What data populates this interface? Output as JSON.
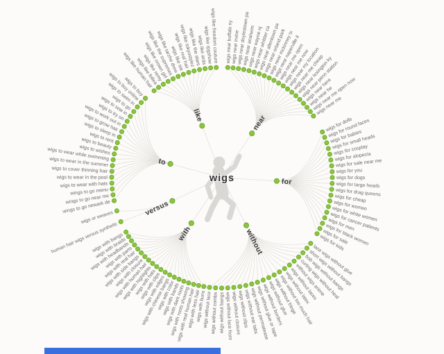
{
  "colors": {
    "background": "#fcfbf9",
    "line": "#e2e1dc",
    "dot_fill": "#8cc63e",
    "dot_stroke": "#6fa82e",
    "leaf_text": "#6a6a6a",
    "branch_text": "#3b3b3b",
    "center_text": "#333333",
    "silhouette": "#d8d7d3",
    "bottom_bar": "#3a6fe0"
  },
  "wheel": {
    "center_label": "wigs",
    "branches": [
      {
        "label": "near",
        "label_angle": -56,
        "label_radius": 77,
        "angle_start": -87,
        "angle_end": -34,
        "items": [
          "wigs near buffalo ny",
          "wigs near irvine",
          "wigs near doylestown pa",
          "wigs near anaheim",
          "wigs near wayne nj",
          "wigs near whittier ca",
          "wigs near allentown pa",
          "wigs near orland park",
          "wigs near mckinney tx",
          "wigs near naperville il",
          "wigs near me open",
          "wigs near me now",
          "wigs near my location",
          "wigs near me cheap",
          "wigs near lexington ky",
          "wigs near penn station",
          "wigs near here",
          "wigs near he",
          "wigs near me open now",
          "wigs near me"
        ]
      },
      {
        "label": "for",
        "label_angle": 3.5,
        "label_radius": 79,
        "angle_start": -24.5,
        "angle_end": 30.5,
        "items": [
          "wigs for dolls",
          "wigs for round faces",
          "wigs for babies",
          "wigs for small heads",
          "wigs for cosplay",
          "wigs for alopecia",
          "wigs for sale near me",
          "wigs for you",
          "wigs for dogs",
          "wigs for large heads",
          "wigs for drag queens",
          "wigs for cheap",
          "wigs for women",
          "wigs for white women",
          "wigs for cancer patients",
          "wigs for men",
          "wigs for black women",
          "wigs for sale",
          "wigs for kids"
        ]
      },
      {
        "label": "without",
        "label_angle": 63,
        "label_radius": 77,
        "angle_start": 36.5,
        "angle_end": 96.5,
        "items": [
          "lace wigs without glue",
          "short wigs without bangs",
          "bob wigs without bangs",
          "curling wigs without heat",
          "without wigs anime",
          "wigs without laces",
          "wigs without latex",
          "wigs without too much hair",
          "wigs without fringe",
          "wigs without glue",
          "wigs without borders",
          "wigs without glue or tape",
          "wigs without permatease",
          "wigs without ear tabs",
          "wigs without clips",
          "wigs without closure",
          "wigs without lace front",
          "wigs without bangs",
          "wigs without combs",
          "wigs without lace"
        ]
      },
      {
        "label": "with",
        "label_angle": 124,
        "label_radius": 79,
        "angle_start": 150.5,
        "angle_end": 99.5,
        "items": [
          "wigs with bangs",
          "wigs with braids",
          "wigs with headbands",
          "wigs with parts",
          "wigs with real hair",
          "wigs with side bangs",
          "wigs with closure",
          "wigs with human hair",
          "wigs with highlights",
          "wigs with hats",
          "wigs with clips",
          "wigs with edges",
          "wigs with chinese bangs",
          "wigs with color",
          "wigs with bands",
          "wigs with dark roots",
          "wigs with roots showing",
          "wigs with real human hair",
          "wigs with less hair",
          "wigs with buns"
        ]
      },
      {
        "label": "versus",
        "label_angle": 155,
        "label_radius": 79,
        "angle_start": 162.5,
        "angle_end": 156.5,
        "items": [
          "wigs or weaves",
          "human hair wigs versus synthetic"
        ]
      },
      {
        "label": "to",
        "label_angle": 195,
        "label_radius": 77,
        "angle_start": 226,
        "angle_end": 168,
        "items": [
          "wigs to buy",
          "wigs to buy online",
          "wigs to swim in",
          "wigs to go",
          "wigs to sew in",
          "wigs to try on",
          "wigs to work out in",
          "wigs to grow hair",
          "wigs to sleep in",
          "wigs to rent",
          "wigs to beauty",
          "wigs to wishes",
          "wigs to wear while swimming",
          "wigs to wear in the summer",
          "wigs to cover thinning hair",
          "wigs to wear in the pool",
          "wigs to wear with hats",
          "wings to go menu",
          "wings to go near me",
          "wings to go newark de"
        ]
      },
      {
        "label": "like",
        "label_angle": 249,
        "label_radius": 80,
        "angle_start": 232,
        "angle_end": 267,
        "items": [
          "wigs like human hair",
          "wigs like follea",
          "wigs like remy",
          "wigs like crown girl",
          "wigs like the supremes",
          "wigs like tarzhe drew",
          "wigs like sia",
          "wigs like real hair",
          "wigs like tokyostylez",
          "wigs like the stars",
          "wigs like arda",
          "wigs like rpgshow",
          "wigs like freedom couture"
        ]
      }
    ]
  }
}
